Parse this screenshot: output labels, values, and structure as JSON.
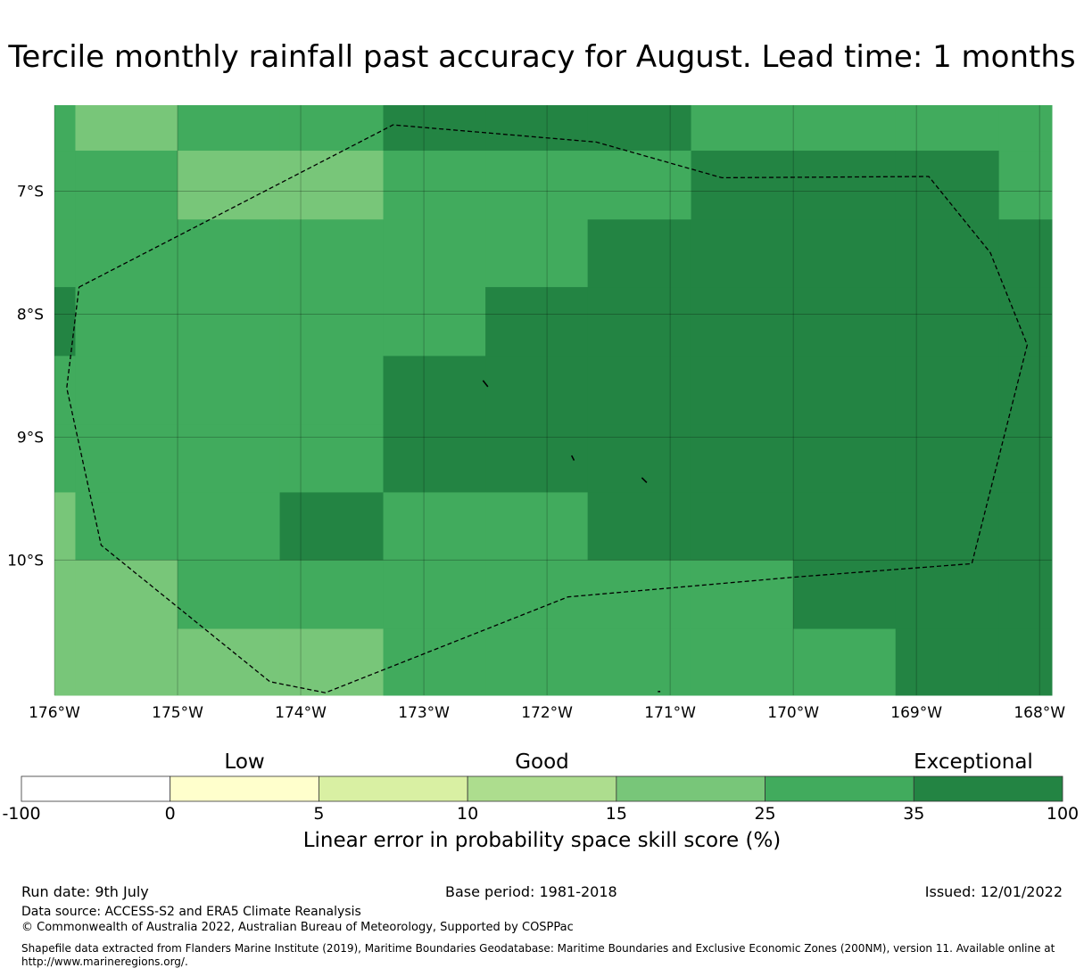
{
  "title": "Tercile monthly rainfall past accuracy for August. Lead time: 1 months",
  "map": {
    "lon_range": [
      -176,
      -167.9
    ],
    "lat_range": [
      -11.1,
      -6.3
    ],
    "x_ticks": [
      {
        "value": -176,
        "label": "176°W"
      },
      {
        "value": -175,
        "label": "175°W"
      },
      {
        "value": -174,
        "label": "174°W"
      },
      {
        "value": -173,
        "label": "173°W"
      },
      {
        "value": -172,
        "label": "172°W"
      },
      {
        "value": -171,
        "label": "171°W"
      },
      {
        "value": -170,
        "label": "170°W"
      },
      {
        "value": -169,
        "label": "169°W"
      },
      {
        "value": -168,
        "label": "168°W"
      }
    ],
    "y_ticks": [
      {
        "value": -7,
        "label": "7°S"
      },
      {
        "value": -8,
        "label": "8°S"
      },
      {
        "value": -9,
        "label": "9°S"
      },
      {
        "value": -10,
        "label": "10°S"
      }
    ],
    "grid": true,
    "skill_grid": {
      "cell_deg": 0.833,
      "lon_edges": [
        -176.0,
        -175.83,
        -175.0,
        -174.17,
        -173.33,
        -172.5,
        -171.67,
        -170.83,
        -170.0,
        -169.17,
        -168.33,
        -167.9
      ],
      "lat_edges": [
        -6.3,
        -6.67,
        -7.23,
        -7.78,
        -8.34,
        -8.9,
        -9.45,
        -10.0,
        -10.56,
        -11.1
      ],
      "classes": [
        [
          6,
          5,
          6,
          6,
          7,
          7,
          7,
          6,
          6,
          6,
          6
        ],
        [
          6,
          6,
          5,
          5,
          6,
          6,
          6,
          7,
          7,
          7,
          6
        ],
        [
          6,
          6,
          6,
          6,
          6,
          6,
          7,
          7,
          7,
          7,
          7
        ],
        [
          7,
          6,
          6,
          6,
          6,
          7,
          7,
          7,
          7,
          7,
          7
        ],
        [
          6,
          6,
          6,
          6,
          7,
          7,
          7,
          7,
          7,
          7,
          7
        ],
        [
          6,
          6,
          6,
          6,
          7,
          7,
          7,
          7,
          7,
          7,
          7
        ],
        [
          5,
          6,
          6,
          7,
          6,
          6,
          7,
          7,
          7,
          7,
          7
        ],
        [
          5,
          5,
          6,
          6,
          6,
          6,
          6,
          6,
          7,
          7,
          7
        ],
        [
          5,
          5,
          5,
          5,
          6,
          6,
          6,
          6,
          6,
          7,
          7
        ]
      ]
    },
    "eez_boundary": [
      [
        -175.8,
        -7.78
      ],
      [
        -173.25,
        -6.46
      ],
      [
        -171.6,
        -6.6
      ],
      [
        -170.58,
        -6.89
      ],
      [
        -168.9,
        -6.88
      ],
      [
        -168.4,
        -7.5
      ],
      [
        -168.1,
        -8.25
      ],
      [
        -168.55,
        -10.03
      ],
      [
        -170.0,
        -10.14
      ],
      [
        -171.83,
        -10.3
      ],
      [
        -173.8,
        -11.08
      ],
      [
        -174.25,
        -10.99
      ],
      [
        -175.62,
        -9.88
      ],
      [
        -175.9,
        -8.6
      ],
      [
        -175.8,
        -7.78
      ]
    ],
    "islands": [
      [
        [
          -172.52,
          -8.54
        ],
        [
          -172.48,
          -8.59
        ]
      ],
      [
        [
          -171.8,
          -9.15
        ],
        [
          -171.78,
          -9.19
        ]
      ],
      [
        [
          -171.23,
          -9.33
        ],
        [
          -171.19,
          -9.37
        ]
      ],
      [
        [
          -171.1,
          -11.07
        ],
        [
          -171.08,
          -11.07
        ]
      ]
    ]
  },
  "colorbar": {
    "categories": [
      {
        "label": "Low",
        "at": "left"
      },
      {
        "label": "Good",
        "at": "center"
      },
      {
        "label": "Exceptional",
        "at": "right"
      }
    ],
    "bins": [
      {
        "from": -100,
        "to": 0,
        "color": "#ffffff"
      },
      {
        "from": 0,
        "to": 5,
        "color": "#ffffcc"
      },
      {
        "from": 5,
        "to": 10,
        "color": "#d9f0a3"
      },
      {
        "from": 10,
        "to": 15,
        "color": "#addd8e"
      },
      {
        "from": 15,
        "to": 25,
        "color": "#78c679"
      },
      {
        "from": 25,
        "to": 35,
        "color": "#41ab5d"
      },
      {
        "from": 35,
        "to": 100,
        "color": "#238443"
      }
    ],
    "tick_labels": [
      "-100",
      "0",
      "5",
      "10",
      "15",
      "25",
      "35",
      "100"
    ],
    "label": "Linear error in probability space skill score (%)"
  },
  "footer": {
    "run_date": "Run date: 9th July",
    "base_period": "Base period: 1981-2018",
    "issued": "Issued: 12/01/2022",
    "data_source": "Data source: ACCESS-S2 and ERA5 Climate Reanalysis",
    "copyright": "© Commonwealth of Australia 2022, Australian Bureau of Meteorology, Supported by COSPPac",
    "shapefile_note": "Shapefile data extracted from Flanders Marine Institute (2019), Maritime Boundaries Geodatabase: Maritime Boundaries and Exclusive Economic Zones (200NM), version 11. Available online at http://www.marineregions.org/."
  }
}
